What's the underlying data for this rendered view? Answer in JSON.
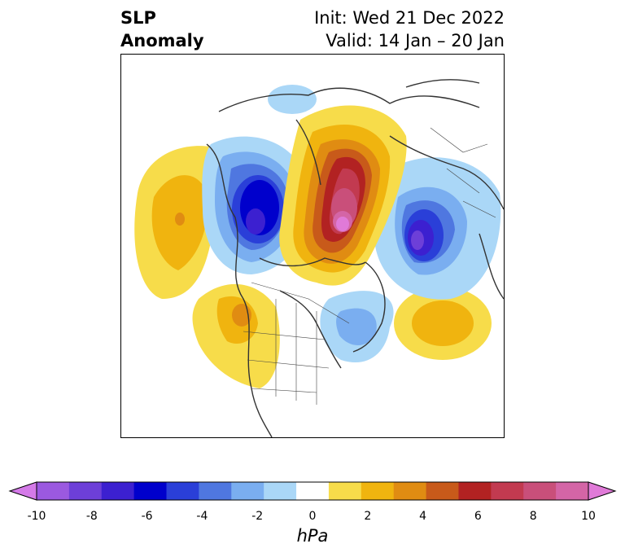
{
  "title": {
    "left_line1": "SLP",
    "left_line2": "Anomaly",
    "right_line1": "Init: Wed 21 Dec 2022",
    "right_line2": "Valid: 14 Jan – 20 Jan"
  },
  "colorbar": {
    "label": "hPa",
    "ticks": [
      "-10",
      "-8",
      "-6",
      "-4",
      "-2",
      "0",
      "2",
      "4",
      "6",
      "8",
      "10"
    ],
    "colors": [
      "#d47ae8",
      "#9b59e0",
      "#6d3fd8",
      "#3c20d0",
      "#0000cc",
      "#2a3fd8",
      "#4f77e0",
      "#7aaef0",
      "#aad7f7",
      "#ffffff",
      "#f7dc4a",
      "#f0b40f",
      "#e08c12",
      "#c85a1a",
      "#b22222",
      "#c23a50",
      "#c94f7a",
      "#d465a6",
      "#e07ad8"
    ]
  },
  "map": {
    "projection": "north polar stereographic",
    "anomalies": [
      {
        "region": "Arctic / Siberia",
        "sign": "positive",
        "peak_hpa": 10
      },
      {
        "region": "Alaska / Bering",
        "sign": "negative",
        "peak_hpa": -8
      },
      {
        "region": "Scandinavia / Europe",
        "sign": "negative",
        "peak_hpa": -8
      },
      {
        "region": "North Pacific",
        "sign": "positive",
        "peak_hpa": 4
      },
      {
        "region": "Atlantic",
        "sign": "positive",
        "peak_hpa": 4
      },
      {
        "region": "Canada / Hudson Bay",
        "sign": "negative",
        "peak_hpa": -4
      }
    ]
  }
}
